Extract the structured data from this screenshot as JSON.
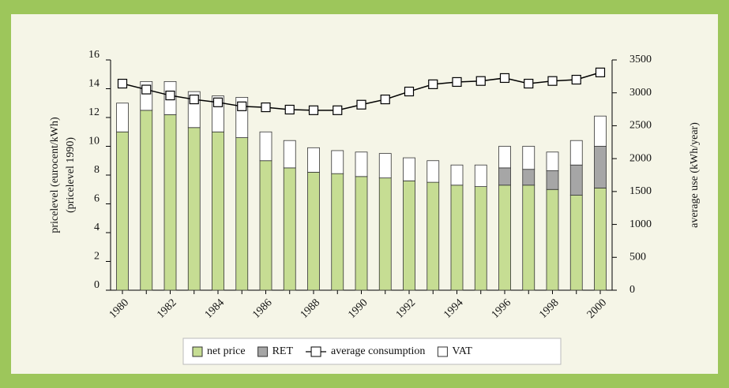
{
  "chart_data": {
    "type": "bar",
    "y_label": "pricelevel (eurocent/kWh)",
    "y_label_2": "(pricelevel 1990)",
    "y2_label": "average use (kWh/year)",
    "categories": [
      "1980",
      null,
      "1982",
      null,
      "1984",
      null,
      "1986",
      null,
      "1988",
      null,
      "1990",
      null,
      "1992",
      null,
      "1994",
      null,
      "1996",
      null,
      "1998",
      null,
      "2000"
    ],
    "series": [
      {
        "name": "net price",
        "color": "#c6dd93",
        "values": [
          11.0,
          12.5,
          12.2,
          11.3,
          11.0,
          10.6,
          9.0,
          8.5,
          8.2,
          8.1,
          7.9,
          7.8,
          7.6,
          7.5,
          7.3,
          7.2,
          7.3,
          7.3,
          7.0,
          6.6,
          7.1
        ]
      },
      {
        "name": "RET",
        "color": "#a6a6a6",
        "values": [
          null,
          null,
          null,
          null,
          null,
          null,
          null,
          null,
          null,
          null,
          null,
          null,
          null,
          null,
          null,
          null,
          1.2,
          1.1,
          1.3,
          2.1,
          2.9
        ]
      },
      {
        "name": "average consumption",
        "color": "#000000",
        "axis": "y2",
        "values": [
          3140,
          3050,
          2960,
          2900,
          2855,
          2795,
          2780,
          2745,
          2735,
          2735,
          2820,
          2900,
          3020,
          3130,
          3165,
          3180,
          3225,
          3140,
          3180,
          3200,
          3310
        ]
      },
      {
        "name": "VAT",
        "color": "#ffffff",
        "values": [
          2.0,
          2.0,
          2.3,
          2.5,
          2.5,
          2.8,
          2.0,
          1.9,
          1.7,
          1.6,
          1.7,
          1.7,
          1.6,
          1.5,
          1.4,
          1.5,
          1.5,
          1.6,
          1.3,
          1.7,
          2.1
        ]
      }
    ],
    "ylim": [
      0,
      16
    ],
    "yticks": [
      0,
      2,
      4,
      6,
      8,
      10,
      12,
      14,
      16
    ],
    "y2lim": [
      0,
      3500
    ],
    "y2ticks": [
      0,
      500,
      1000,
      1500,
      2000,
      2500,
      3000,
      3500
    ],
    "grid": false,
    "legend": "bottom"
  }
}
